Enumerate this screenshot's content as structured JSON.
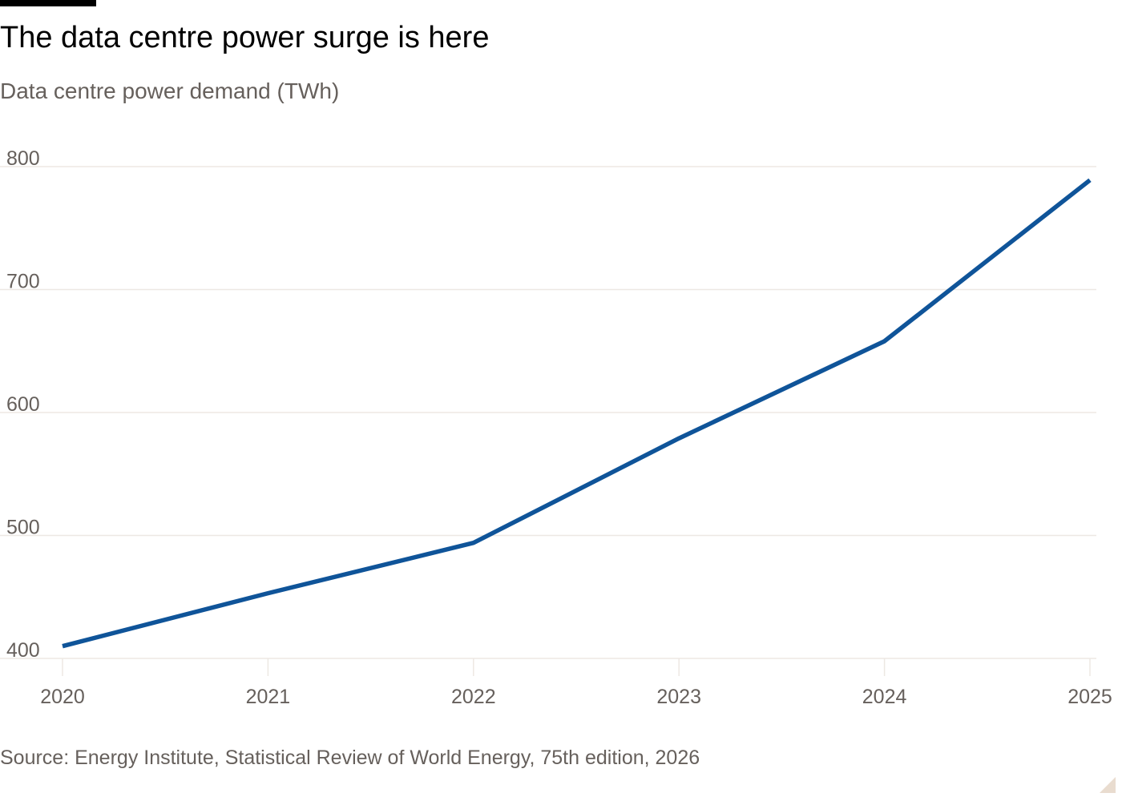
{
  "title": "The data centre power surge is here",
  "subtitle": "Data centre power demand (TWh)",
  "source": "Source: Energy Institute, Statistical Review of World Energy, 75th edition, 2026",
  "colors": {
    "line": "#0f5499",
    "gridline": "#ede8e3",
    "text_muted": "#66605c",
    "brand_bar": "#000000"
  },
  "chart_data": {
    "type": "line",
    "title": "The data centre power surge is here",
    "subtitle": "Data centre power demand (TWh)",
    "x": [
      "2020",
      "2021",
      "2022",
      "2023",
      "2024",
      "2025"
    ],
    "series": [
      {
        "values": [
          410,
          453,
          494,
          579,
          658,
          789
        ]
      }
    ],
    "yticks": [
      400,
      500,
      600,
      700,
      800
    ],
    "ylim": [
      400,
      800
    ],
    "grid": true,
    "legend": "none"
  }
}
